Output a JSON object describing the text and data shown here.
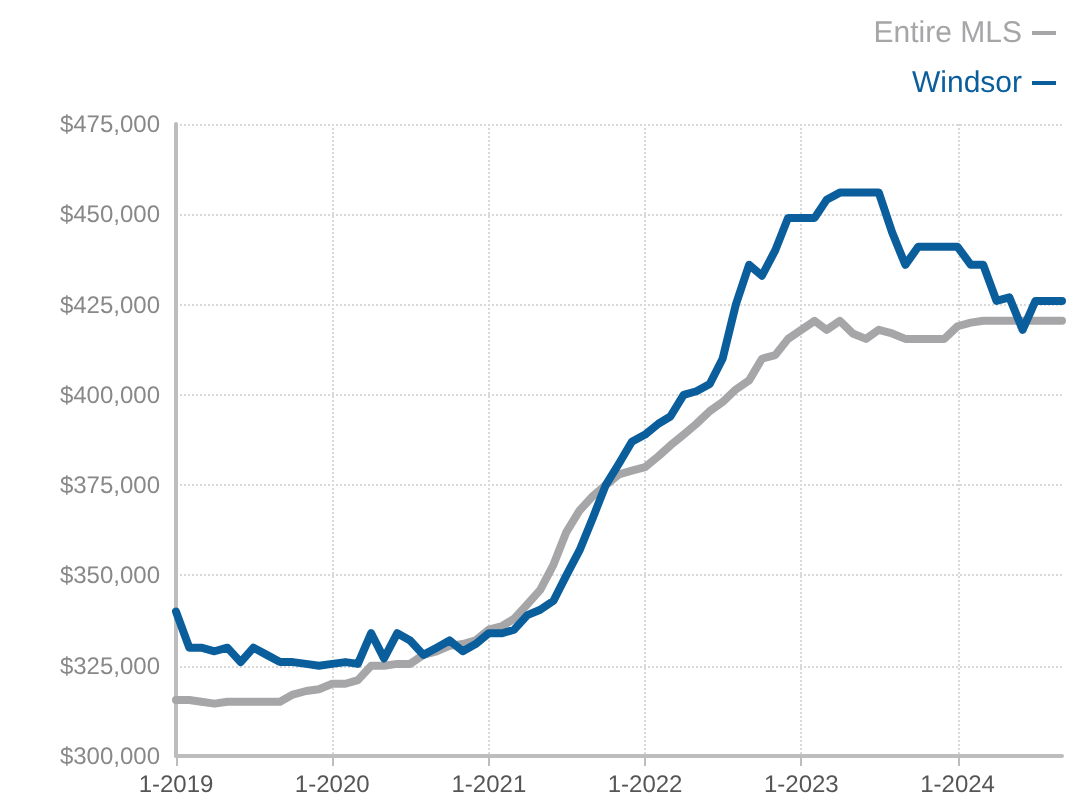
{
  "chart_data": {
    "type": "line",
    "xlim": [
      "2019-01",
      "2024-09"
    ],
    "xticks": [
      {
        "value": "2019-01",
        "label": "1-2019"
      },
      {
        "value": "2020-01",
        "label": "1-2020"
      },
      {
        "value": "2021-01",
        "label": "1-2021"
      },
      {
        "value": "2022-01",
        "label": "1-2022"
      },
      {
        "value": "2023-01",
        "label": "1-2023"
      },
      {
        "value": "2024-01",
        "label": "1-2024"
      }
    ],
    "ylim": [
      300000,
      475000
    ],
    "yticks": [
      {
        "value": 300000,
        "label": "$300,000"
      },
      {
        "value": 325000,
        "label": "$325,000"
      },
      {
        "value": 350000,
        "label": "$350,000"
      },
      {
        "value": 375000,
        "label": "$375,000"
      },
      {
        "value": 400000,
        "label": "$400,000"
      },
      {
        "value": 425000,
        "label": "$425,000"
      },
      {
        "value": 450000,
        "label": "$450,000"
      },
      {
        "value": 475000,
        "label": "$475,000"
      }
    ],
    "x": [
      "2019-01",
      "2019-02",
      "2019-03",
      "2019-04",
      "2019-05",
      "2019-06",
      "2019-07",
      "2019-08",
      "2019-09",
      "2019-10",
      "2019-11",
      "2019-12",
      "2020-01",
      "2020-02",
      "2020-03",
      "2020-04",
      "2020-05",
      "2020-06",
      "2020-07",
      "2020-08",
      "2020-09",
      "2020-10",
      "2020-11",
      "2020-12",
      "2021-01",
      "2021-02",
      "2021-03",
      "2021-04",
      "2021-05",
      "2021-06",
      "2021-07",
      "2021-08",
      "2021-09",
      "2021-10",
      "2021-11",
      "2021-12",
      "2022-01",
      "2022-02",
      "2022-03",
      "2022-04",
      "2022-05",
      "2022-06",
      "2022-07",
      "2022-08",
      "2022-09",
      "2022-10",
      "2022-11",
      "2022-12",
      "2023-01",
      "2023-02",
      "2023-03",
      "2023-04",
      "2023-05",
      "2023-06",
      "2023-07",
      "2023-08",
      "2023-09",
      "2023-10",
      "2023-11",
      "2023-12",
      "2024-01",
      "2024-02",
      "2024-03",
      "2024-04",
      "2024-05",
      "2024-06",
      "2024-07",
      "2024-08",
      "2024-09"
    ],
    "series": [
      {
        "name": "Entire MLS",
        "color": "#a6a6a8",
        "values": [
          315500,
          315500,
          315000,
          314500,
          315000,
          315000,
          315000,
          315000,
          315000,
          317000,
          318000,
          318500,
          320000,
          320000,
          321000,
          325000,
          325000,
          325500,
          325500,
          328000,
          329000,
          330500,
          331000,
          332000,
          335000,
          336000,
          338000,
          342000,
          346000,
          353000,
          362000,
          368000,
          372000,
          375000,
          378000,
          379000,
          380000,
          383000,
          386000,
          389000,
          392000,
          395500,
          398000,
          401500,
          404000,
          410000,
          411000,
          415500,
          418000,
          420500,
          418000,
          420500,
          417000,
          415500,
          418000,
          417000,
          415500,
          415500,
          415500,
          415500,
          419000,
          420000,
          420500,
          420500,
          420500,
          420500,
          420500,
          420500,
          420500
        ]
      },
      {
        "name": "Windsor",
        "color": "#0b5e9c",
        "values": [
          340000,
          330000,
          330000,
          329000,
          330000,
          326000,
          330000,
          328000,
          326000,
          326000,
          325500,
          325000,
          325500,
          326000,
          325500,
          334000,
          327000,
          334000,
          332000,
          328000,
          330000,
          332000,
          329000,
          331000,
          334000,
          334000,
          335000,
          339000,
          340500,
          343000,
          350000,
          357000,
          366000,
          375000,
          381000,
          387000,
          389000,
          392000,
          394000,
          400000,
          401000,
          403000,
          410000,
          425000,
          436000,
          433000,
          440000,
          449000,
          449000,
          449000,
          454000,
          456000,
          456000,
          456000,
          456000,
          445000,
          436000,
          441000,
          441000,
          441000,
          441000,
          436000,
          436000,
          426000,
          427000,
          418000,
          426000,
          426000,
          426000
        ]
      }
    ],
    "legend": "top right",
    "grid": true,
    "marker": "none",
    "line_style": "solid"
  }
}
